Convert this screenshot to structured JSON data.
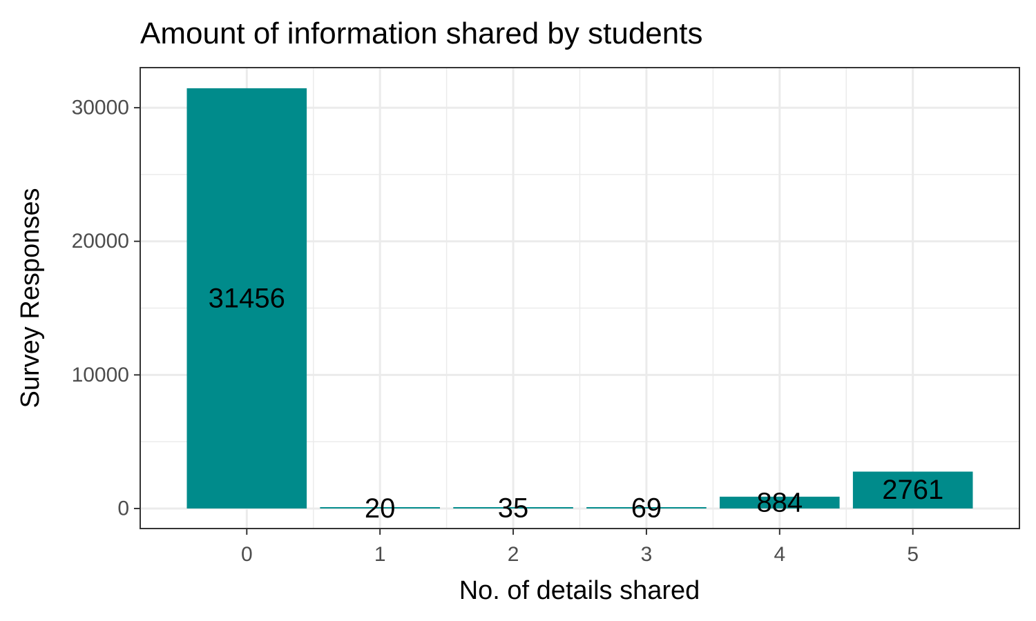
{
  "chart_data": {
    "type": "bar",
    "title": "Amount of information shared by students",
    "xlabel": "No. of details shared",
    "ylabel": "Survey Responses",
    "categories": [
      "0",
      "1",
      "2",
      "3",
      "4",
      "5"
    ],
    "values": [
      31456,
      20,
      35,
      69,
      884,
      2761
    ],
    "data_labels": [
      "31456",
      "20",
      "35",
      "69",
      "884",
      "2761"
    ],
    "y_ticks": [
      0,
      10000,
      20000,
      30000
    ],
    "y_tick_labels": [
      "0",
      "10000",
      "20000",
      "30000"
    ],
    "ylim": [
      -1500,
      33000
    ],
    "grid": true,
    "bar_color": "#008b8b",
    "panel_border_color": "#333333",
    "grid_color": "#ebebeb"
  }
}
